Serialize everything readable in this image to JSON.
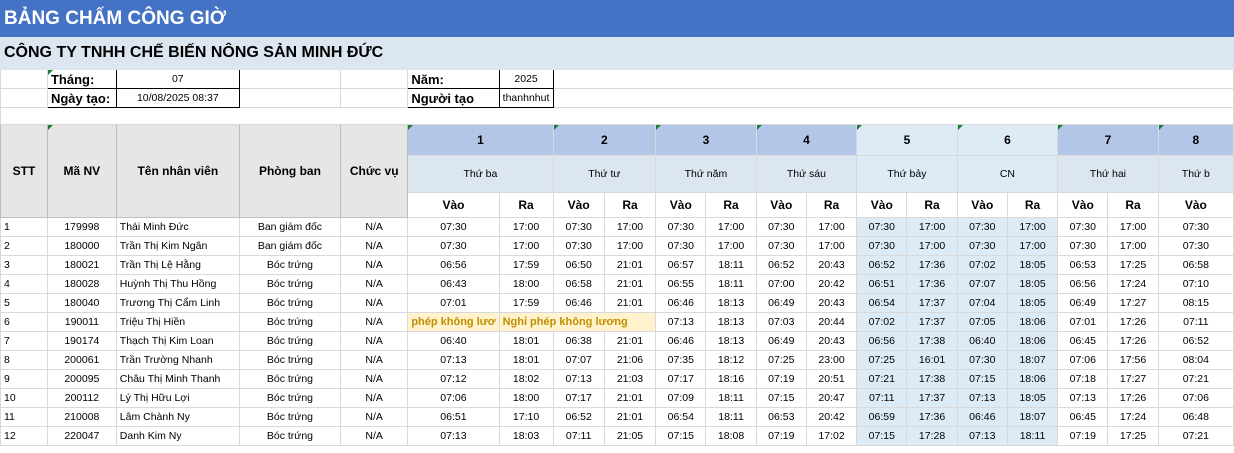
{
  "title": "BẢNG CHẤM CÔNG GIỜ",
  "company": "CÔNG TY TNHH CHẾ BIẾN NÔNG SẢN MINH ĐỨC",
  "info": {
    "month_label": "Tháng:",
    "month_value": "07",
    "year_label": "Năm:",
    "year_value": "2025",
    "created_label": "Ngày tạo:",
    "created_value": "10/08/2025 08:37",
    "creator_label": "Người tạo",
    "creator_value": "thanhnhut"
  },
  "headers": {
    "stt": "STT",
    "emp_id": "Mã NV",
    "name": "Tên nhân viên",
    "dept": "Phòng ban",
    "position": "Chức vụ",
    "in": "Vào",
    "out": "Ra"
  },
  "days": [
    {
      "num": "1",
      "weekday": "Thứ ba"
    },
    {
      "num": "2",
      "weekday": "Thứ tư"
    },
    {
      "num": "3",
      "weekday": "Thứ năm"
    },
    {
      "num": "4",
      "weekday": "Thứ sáu"
    },
    {
      "num": "5",
      "weekday": "Thứ bảy"
    },
    {
      "num": "6",
      "weekday": "CN"
    },
    {
      "num": "7",
      "weekday": "Thứ hai"
    },
    {
      "num": "8",
      "weekday": "Thứ b"
    }
  ],
  "leave_text_a": "phép không lươ",
  "leave_text_b": "Nghỉ phép không lương",
  "rows": [
    {
      "stt": "1",
      "id": "179998",
      "name": "Thái Minh Đức",
      "dept": "Ban giám đốc",
      "pos": "N/A",
      "t": [
        "07:30",
        "17:00",
        "07:30",
        "17:00",
        "07:30",
        "17:00",
        "07:30",
        "17:00",
        "07:30",
        "17:00",
        "07:30",
        "17:00",
        "07:30",
        "17:00",
        "07:30"
      ]
    },
    {
      "stt": "2",
      "id": "180000",
      "name": "Trần Thị Kim Ngân",
      "dept": "Ban giám đốc",
      "pos": "N/A",
      "t": [
        "07:30",
        "17:00",
        "07:30",
        "17:00",
        "07:30",
        "17:00",
        "07:30",
        "17:00",
        "07:30",
        "17:00",
        "07:30",
        "17:00",
        "07:30",
        "17:00",
        "07:30"
      ]
    },
    {
      "stt": "3",
      "id": "180021",
      "name": "Trần Thị Lệ Hằng",
      "dept": "Bóc trứng",
      "pos": "N/A",
      "t": [
        "06:56",
        "17:59",
        "06:50",
        "21:01",
        "06:57",
        "18:11",
        "06:52",
        "20:43",
        "06:52",
        "17:36",
        "07:02",
        "18:05",
        "06:53",
        "17:25",
        "06:58"
      ]
    },
    {
      "stt": "4",
      "id": "180028",
      "name": "Huỳnh Thị Thu Hồng",
      "dept": "Bóc trứng",
      "pos": "N/A",
      "t": [
        "06:43",
        "18:00",
        "06:58",
        "21:01",
        "06:55",
        "18:11",
        "07:00",
        "20:42",
        "06:51",
        "17:36",
        "07:07",
        "18:05",
        "06:56",
        "17:24",
        "07:10"
      ]
    },
    {
      "stt": "5",
      "id": "180040",
      "name": "Trương Thị Cẩm Linh",
      "dept": "Bóc trứng",
      "pos": "N/A",
      "t": [
        "07:01",
        "17:59",
        "06:46",
        "21:01",
        "06:46",
        "18:13",
        "06:49",
        "20:43",
        "06:54",
        "17:37",
        "07:04",
        "18:05",
        "06:49",
        "17:27",
        "08:15"
      ]
    },
    {
      "stt": "6",
      "id": "190011",
      "name": "Triệu Thị Hiền",
      "dept": "Bóc trứng",
      "pos": "N/A",
      "leave": true,
      "t": [
        "",
        "",
        "",
        "",
        "07:13",
        "18:13",
        "07:03",
        "20:44",
        "07:02",
        "17:37",
        "07:05",
        "18:06",
        "07:01",
        "17:26",
        "07:11"
      ]
    },
    {
      "stt": "7",
      "id": "190174",
      "name": "Thạch Thị Kim Loan",
      "dept": "Bóc trứng",
      "pos": "N/A",
      "t": [
        "06:40",
        "18:01",
        "06:38",
        "21:01",
        "06:46",
        "18:13",
        "06:49",
        "20:43",
        "06:56",
        "17:38",
        "06:40",
        "18:06",
        "06:45",
        "17:26",
        "06:52"
      ]
    },
    {
      "stt": "8",
      "id": "200061",
      "name": "Trần Trường Nhanh",
      "dept": "Bóc trứng",
      "pos": "N/A",
      "t": [
        "07:13",
        "18:01",
        "07:07",
        "21:06",
        "07:35",
        "18:12",
        "07:25",
        "23:00",
        "07:25",
        "16:01",
        "07:30",
        "18:07",
        "07:06",
        "17:56",
        "08:04"
      ]
    },
    {
      "stt": "9",
      "id": "200095",
      "name": "Châu Thị Minh Thanh",
      "dept": "Bóc trứng",
      "pos": "N/A",
      "t": [
        "07:12",
        "18:02",
        "07:13",
        "21:03",
        "07:17",
        "18:16",
        "07:19",
        "20:51",
        "07:21",
        "17:38",
        "07:15",
        "18:06",
        "07:18",
        "17:27",
        "07:21"
      ]
    },
    {
      "stt": "10",
      "id": "200112",
      "name": "Lý Thị Hữu Lợi",
      "dept": "Bóc trứng",
      "pos": "N/A",
      "t": [
        "07:06",
        "18:00",
        "07:17",
        "21:01",
        "07:09",
        "18:11",
        "07:15",
        "20:47",
        "07:11",
        "17:37",
        "07:13",
        "18:05",
        "07:13",
        "17:26",
        "07:06"
      ]
    },
    {
      "stt": "11",
      "id": "210008",
      "name": "Lâm Chành Ny",
      "dept": "Bóc trứng",
      "pos": "N/A",
      "t": [
        "06:51",
        "17:10",
        "06:52",
        "21:01",
        "06:54",
        "18:11",
        "06:53",
        "20:42",
        "06:59",
        "17:36",
        "06:46",
        "18:07",
        "06:45",
        "17:24",
        "06:48"
      ]
    },
    {
      "stt": "12",
      "id": "220047",
      "name": "Danh Kim Ny",
      "dept": "Bóc trứng",
      "pos": "N/A",
      "t": [
        "07:13",
        "18:03",
        "07:11",
        "21:05",
        "07:15",
        "18:08",
        "07:19",
        "17:02",
        "07:15",
        "17:28",
        "07:13",
        "18:11",
        "07:19",
        "17:25",
        "07:21"
      ]
    }
  ]
}
